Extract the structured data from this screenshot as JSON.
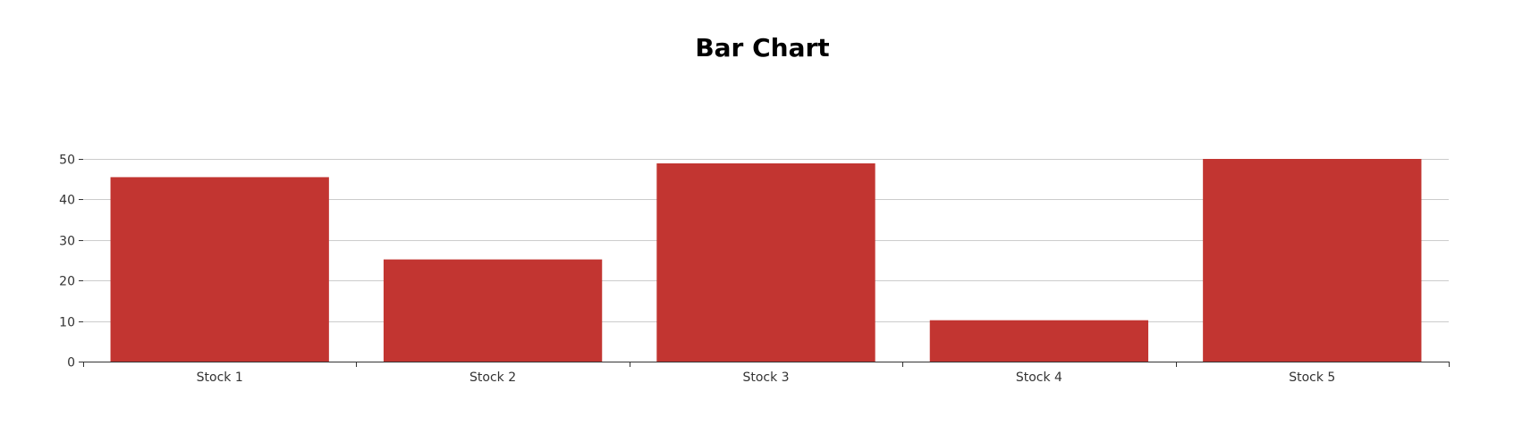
{
  "chart_data": {
    "type": "bar",
    "title": "Bar Chart",
    "categories": [
      "Stock 1",
      "Stock 2",
      "Stock 3",
      "Stock 4",
      "Stock 5"
    ],
    "values": [
      45.5,
      25.2,
      48.9,
      10.2,
      50
    ],
    "ylim": [
      0,
      50
    ],
    "yticks": [
      "0",
      "10",
      "20",
      "30",
      "40",
      "50"
    ],
    "grid": true,
    "xlabel": "",
    "ylabel": "",
    "colors": {
      "bar": "#c23531",
      "grid": "#cccccc",
      "axis": "#333333"
    }
  }
}
